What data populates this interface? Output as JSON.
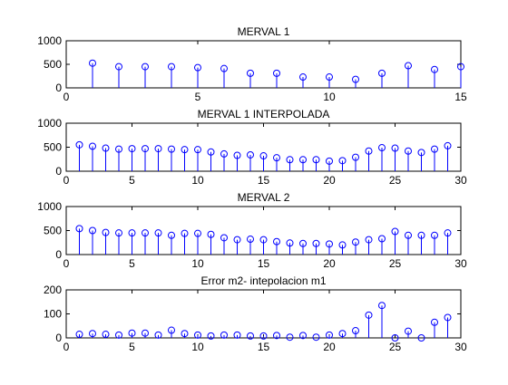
{
  "window": {
    "background": "#ffffff"
  },
  "style": {
    "stem_color": "#0000ff",
    "axes_color": "#000000"
  },
  "chart_data": [
    {
      "type": "stem",
      "title": "MERVAL 1",
      "x": [
        1,
        2,
        3,
        4,
        5,
        6,
        7,
        8,
        9,
        10,
        11,
        12,
        13,
        14,
        15
      ],
      "values": [
        525,
        450,
        450,
        450,
        430,
        410,
        310,
        310,
        230,
        230,
        180,
        310,
        470,
        390,
        450
      ],
      "xlim": [
        0,
        15
      ],
      "ylim": [
        0,
        1000
      ],
      "xticks": [
        0,
        5,
        10,
        15
      ],
      "yticks": [
        0,
        500,
        1000
      ]
    },
    {
      "type": "stem",
      "title": "MERVAL 1 INTERPOLADA",
      "x": [
        1,
        2,
        3,
        4,
        5,
        6,
        7,
        8,
        9,
        10,
        11,
        12,
        13,
        14,
        15,
        16,
        17,
        18,
        19,
        20,
        21,
        22,
        23,
        24,
        25,
        26,
        27,
        28,
        29
      ],
      "values": [
        550,
        520,
        480,
        460,
        470,
        470,
        470,
        460,
        450,
        450,
        400,
        360,
        330,
        340,
        320,
        280,
        240,
        240,
        240,
        210,
        220,
        290,
        420,
        490,
        480,
        420,
        390,
        460,
        530
      ],
      "xlim": [
        0,
        30
      ],
      "ylim": [
        0,
        1000
      ],
      "xticks": [
        0,
        5,
        10,
        15,
        20,
        25,
        30
      ],
      "yticks": [
        0,
        500,
        1000
      ]
    },
    {
      "type": "stem",
      "title": "MERVAL 2",
      "x": [
        1,
        2,
        3,
        4,
        5,
        6,
        7,
        8,
        9,
        10,
        11,
        12,
        13,
        14,
        15,
        16,
        17,
        18,
        19,
        20,
        21,
        22,
        23,
        24,
        25,
        26,
        27,
        28,
        29
      ],
      "values": [
        540,
        500,
        460,
        450,
        450,
        450,
        450,
        400,
        440,
        440,
        420,
        350,
        310,
        320,
        310,
        270,
        240,
        230,
        230,
        220,
        200,
        260,
        310,
        330,
        480,
        400,
        400,
        400,
        450
      ],
      "xlim": [
        0,
        30
      ],
      "ylim": [
        0,
        1000
      ],
      "xticks": [
        0,
        5,
        10,
        15,
        20,
        25,
        30
      ],
      "yticks": [
        0,
        500,
        1000
      ]
    },
    {
      "type": "stem",
      "title": "Error m2- intepolacion m1",
      "x": [
        1,
        2,
        3,
        4,
        5,
        6,
        7,
        8,
        9,
        10,
        11,
        12,
        13,
        14,
        15,
        16,
        17,
        18,
        19,
        20,
        21,
        22,
        23,
        24,
        25,
        26,
        27,
        28,
        29
      ],
      "values": [
        15,
        18,
        15,
        12,
        20,
        20,
        12,
        32,
        18,
        12,
        8,
        12,
        12,
        8,
        8,
        10,
        3,
        10,
        3,
        12,
        18,
        30,
        95,
        135,
        0,
        28,
        0,
        65,
        85
      ],
      "xlim": [
        0,
        30
      ],
      "ylim": [
        0,
        200
      ],
      "xticks": [
        0,
        5,
        10,
        15,
        20,
        25,
        30
      ],
      "yticks": [
        0,
        100,
        200
      ]
    }
  ]
}
